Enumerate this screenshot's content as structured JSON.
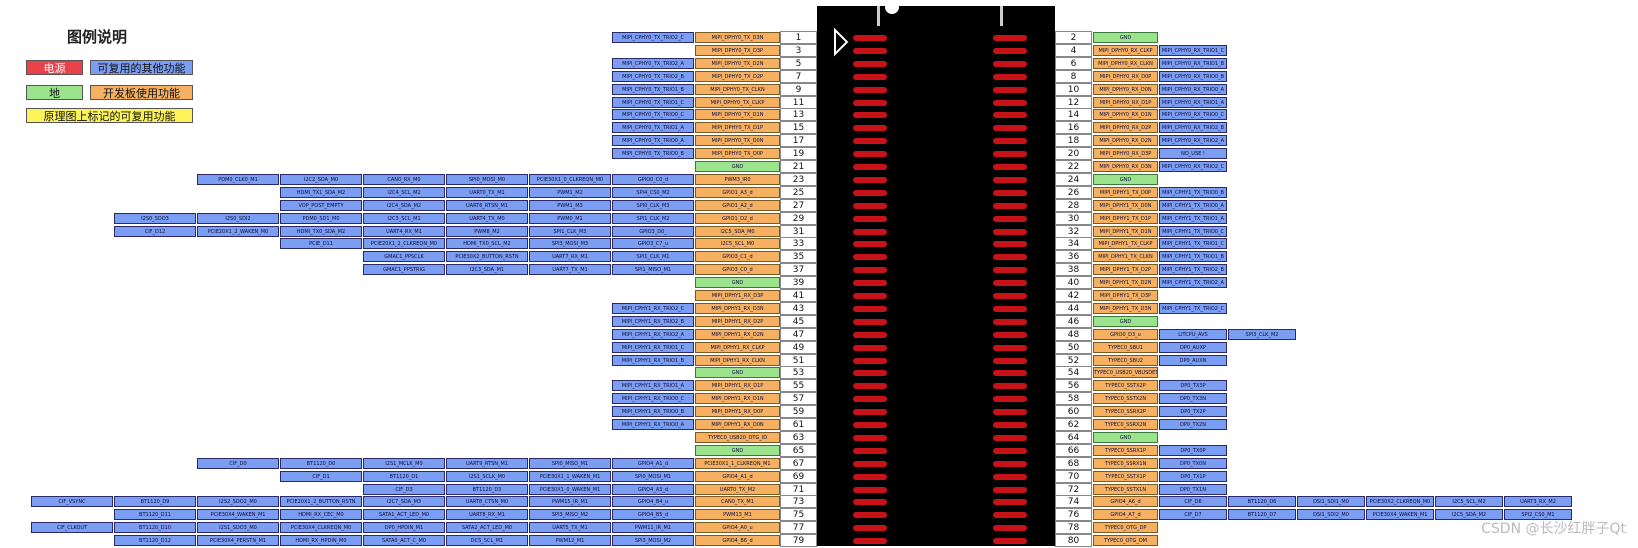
{
  "legend": {
    "title": "图例说明",
    "power": "电源",
    "ground": "地",
    "other_mux": "可复用的其他功能",
    "devboard": "开发板使用功能",
    "schematic": "原理图上标记的可复用功能"
  },
  "colors": {
    "power": "#e8414a",
    "ground": "#9be38d",
    "blue": "#7b9df2",
    "orange": "#f5b062",
    "yellow": "#fcf35a"
  },
  "left_pins": [
    {
      "pin": "1",
      "main": "MIPI_DPHY0_TX_D3N",
      "mux": [
        "MIPI_CPHY0_TX_TRIO2_C"
      ]
    },
    {
      "pin": "3",
      "main": "MIPI_DPHY0_TX_D3P",
      "mux": []
    },
    {
      "pin": "5",
      "main": "MIPI_DPHY0_TX_D2N",
      "mux": [
        "MIPI_CPHY0_TX_TRIO2_A"
      ]
    },
    {
      "pin": "7",
      "main": "MIPI_DPHY0_TX_D2P",
      "mux": [
        "MIPI_CPHY0_TX_TRIO2_B"
      ]
    },
    {
      "pin": "9",
      "main": "MIPI_DPHY0_TX_CLKN",
      "mux": [
        "MIPI_CPHY0_TX_TRIO1_B"
      ]
    },
    {
      "pin": "11",
      "main": "MIPI_DPHY0_TX_CLKP",
      "mux": [
        "MIPI_CPHY0_TX_TRIO1_C"
      ]
    },
    {
      "pin": "13",
      "main": "MIPI_DPHY0_TX_D1N",
      "mux": [
        "MIPI_CPHY0_TX_TRIO0_C"
      ]
    },
    {
      "pin": "15",
      "main": "MIPI_DPHY0_TX_D1P",
      "mux": [
        "MIPI_CPHY0_TX_TRIO1_A"
      ]
    },
    {
      "pin": "17",
      "main": "MIPI_DPHY0_TX_D0N",
      "mux": [
        "MIPI_CPHY0_TX_TRIO0_A"
      ]
    },
    {
      "pin": "19",
      "main": "MIPI_DPHY0_TX_D0P",
      "mux": [
        "MIPI_CPHY0_TX_TRIO0_B"
      ]
    },
    {
      "pin": "21",
      "main": "GND",
      "ground": true,
      "mux": []
    },
    {
      "pin": "23",
      "main": "PWM3_IR0",
      "mux": [
        "GPIO0_C0_d",
        "PCIE30X1_0_CLKREQN_M0",
        "SPI0_MOSI_M0",
        "CAN0_RX_M0",
        "I2C2_SDA_M0",
        "PDM0_CLK0_M1"
      ]
    },
    {
      "pin": "25",
      "main": "GPIO1_A3_d",
      "mux": [
        "SPI4_CS0_M2",
        "PWM1_M2",
        "UART0_TX_M1",
        "I2C4_SCL_M2",
        "HDMI_TX1_SDA_M2"
      ]
    },
    {
      "pin": "27",
      "main": "GPIO1_A2_d",
      "mux": [
        "SPI0_CLK_M3",
        "PWM1_M3",
        "UART6_RTSN_M1",
        "I2C4_SDA_M2",
        "VOP_POST_EMPTY"
      ]
    },
    {
      "pin": "29",
      "main": "GPIO1_D2_d",
      "mux": [
        "SPI1_CLK_M2",
        "PWM0_M1",
        "UART4_TX_M0",
        "I2C3_SCL_M1",
        "PDM0_SD1_M0",
        "I2S0_SDI2",
        "I2S0_SDO3"
      ]
    },
    {
      "pin": "31",
      "main": "I2C5_SDA_M0",
      "mux": [
        "GPIO3_D0_",
        "SPI1_CLK_M3",
        "PWM8_M2",
        "UART4_RX_M1",
        "HDMI_TX0_SDA_M2",
        "PCIE20X1_2_WAKEN_M0",
        "CIF_D12"
      ]
    },
    {
      "pin": "33",
      "main": "I2C5_SCL_M0",
      "mux": [
        "GPIO3_C7_u",
        "SPI3_MOSI_M3",
        "HDMI_TX0_SCL_M2",
        "PCIE20X1_2_CLKREQN_M0",
        "PCIE_D11"
      ]
    },
    {
      "pin": "35",
      "main": "GPIO3_C1_d",
      "mux": [
        "SPI1_CLK_M1",
        "UART7_RX_M1",
        "PCIE30X2_BUTTON_RSTN",
        "GMAC1_PPSCLK"
      ]
    },
    {
      "pin": "37",
      "main": "GPIO3_C0_d",
      "mux": [
        "SPI1_MISO_M1",
        "UART7_TX_M1",
        "I2C3_SDA_M1",
        "GMAC1_PPSTRIG"
      ]
    },
    {
      "pin": "39",
      "main": "GND",
      "ground": true,
      "mux": []
    },
    {
      "pin": "41",
      "main": "MIPI_DPHY1_RX_D3P",
      "mux": []
    },
    {
      "pin": "43",
      "main": "MIPI_DPHY1_RX_D3N",
      "mux": [
        "MIPI_CPHY1_RX_TRIO2_C"
      ]
    },
    {
      "pin": "45",
      "main": "MIPI_DPHY1_RX_D2P",
      "mux": [
        "MIPI_CPHY1_RX_TRIO2_B"
      ]
    },
    {
      "pin": "47",
      "main": "MIPI_DPHY1_RX_D2N",
      "mux": [
        "MIPI_CPHY1_RX_TRIO2_A"
      ]
    },
    {
      "pin": "49",
      "main": "MIPI_DPHY1_RX_CLKP",
      "mux": [
        "MIPI_CPHY1_RX_TRIO1_C"
      ]
    },
    {
      "pin": "51",
      "main": "MIPI_DPHY1_RX_CLKN",
      "mux": [
        "MIPI_CPHY1_RX_TRIO1_B"
      ]
    },
    {
      "pin": "53",
      "main": "GND",
      "ground": true,
      "mux": []
    },
    {
      "pin": "55",
      "main": "MIPI_DPHY1_RX_D1P",
      "mux": [
        "MIPI_CPHY1_RX_TRIO1_A"
      ]
    },
    {
      "pin": "57",
      "main": "MIPI_DPHY1_RX_D1N",
      "mux": [
        "MIPI_CPHY1_RX_TRIO0_C"
      ]
    },
    {
      "pin": "59",
      "main": "MIPI_DPHY1_RX_D0P",
      "mux": [
        "MIPI_CPHY1_RX_TRIO0_B"
      ]
    },
    {
      "pin": "61",
      "main": "MIPI_DPHY1_RX_D0N",
      "mux": [
        "MIPI_CPHY1_RX_TRIO0_A"
      ]
    },
    {
      "pin": "63",
      "main": "TYPEC0_USB20_OTG_ID",
      "mux": []
    },
    {
      "pin": "65",
      "main": "GND",
      "ground": true,
      "mux": []
    },
    {
      "pin": "67",
      "main": "PCIE30X1_1_CLKREQN_M1",
      "mux": [
        "GPIO4_A1_d",
        "SPI0_MISO_M1",
        "UART9_RTSN_M1",
        "I2S1_MCLK_M0",
        "BT1120_D0",
        "CIF_D0"
      ]
    },
    {
      "pin": "69",
      "main": "GPIO4_A1_d",
      "mux": [
        "SPI0_MOSI_M1",
        "PCIE30X1_1_WAKEN_M1",
        "I2S1_SCLK_M0",
        "BT1120_D1",
        "CIF_D1"
      ]
    },
    {
      "pin": "71",
      "main": "UART0_TX_M2",
      "mux": [
        "GPIO4_A3_d",
        "PCIE30X1_0_WAKEN_M1",
        "BT1120_D3",
        "CIF_D3"
      ]
    },
    {
      "pin": "73",
      "main": "CAN0_TX_M1",
      "mux": [
        "GPIO4_B4_u",
        "PWM15_IR_M1",
        "UART8_CTSN_M0",
        "I2C7_SDA_M3",
        "PCIE20X1_2_BUTTON_RSTN",
        "I2S2_SDO2_M0",
        "BT1120_D9",
        "CIF_VSYNC"
      ]
    },
    {
      "pin": "75",
      "main": "PWM13_M1",
      "mux": [
        "GPIO4_B5_d",
        "SPI3_MISO_M2",
        "UART8_RX_M1",
        "SATA1_ACT_LED_M0",
        "HDMI_RX_CEC_M0",
        "PCIE30X4_WAKEN_M1",
        "BT1120_D11"
      ]
    },
    {
      "pin": "77",
      "main": "GPIO4_A0_u",
      "mux": [
        "PWM11_IR_M1",
        "UART5_TX_M1",
        "SATA2_ACT_LED_M0",
        "DP0_HPDIN_M1",
        "PCIE30X4_CLKREQN_M0",
        "I2S1_SDO3_M0",
        "BT1120_D10",
        "CIF_CLKOUT"
      ]
    },
    {
      "pin": "79",
      "main": "GPIO4_B6_d",
      "mux": [
        "SPI3_MOSI_M2",
        "PWM12_M1",
        "DCS_SCL_M1",
        "SATA0_ACT_C_M0",
        "HDMI_RX_HPDIN_M0",
        "PCIE30X4_PERSTN_M1",
        "BT1120_D12"
      ]
    }
  ],
  "right_pins": [
    {
      "pin": "2",
      "main": "GND",
      "ground": true,
      "mux": []
    },
    {
      "pin": "4",
      "main": "MIPI_DPHY0_RX_CLKP",
      "mux": [
        "MIPI_CPHY0_RX_TRIO1_C"
      ]
    },
    {
      "pin": "6",
      "main": "MIPI_DPHY0_RX_CLKN",
      "mux": [
        "MIPI_CPHY0_RX_TRIO1_B"
      ]
    },
    {
      "pin": "8",
      "main": "MIPI_DPHY0_RX_D0P",
      "mux": [
        "MIPI_CPHY0_RX_TRIO0_B"
      ]
    },
    {
      "pin": "10",
      "main": "MIPI_DPHY0_RX_D0N",
      "mux": [
        "MIPI_CPHY0_RX_TRIO0_A"
      ]
    },
    {
      "pin": "12",
      "main": "MIPI_DPHY0_RX_D1P",
      "mux": [
        "MIPI_CPHY0_RX_TRIO1_A"
      ]
    },
    {
      "pin": "14",
      "main": "MIPI_DPHY0_RX_D1N",
      "mux": [
        "MIPI_CPHY0_RX_TRIO0_C"
      ]
    },
    {
      "pin": "16",
      "main": "MIPI_DPHY0_RX_D2P",
      "mux": [
        "MIPI_CPHY0_RX_TRIO2_B"
      ]
    },
    {
      "pin": "18",
      "main": "MIPI_DPHY0_RX_D2N",
      "mux": [
        "MIPI_CPHY0_RX_TRIO2_A"
      ]
    },
    {
      "pin": "20",
      "main": "MIPI_DPHY0_RX_D3P",
      "mux": [
        "NO_USE !"
      ]
    },
    {
      "pin": "22",
      "main": "MIPI_DPHY0_RX_D3N",
      "mux": [
        "MIPI_CPHY0_RX_TRIO2_C"
      ]
    },
    {
      "pin": "24",
      "main": "GND",
      "ground": true,
      "mux": []
    },
    {
      "pin": "26",
      "main": "MIPI_DPHY1_TX_D0P",
      "mux": [
        "MIPI_CPHY1_TX_TRIO0_B"
      ]
    },
    {
      "pin": "28",
      "main": "MIPI_DPHY1_TX_D0N",
      "mux": [
        "MIPI_CPHY1_TX_TRIO0_A"
      ]
    },
    {
      "pin": "30",
      "main": "MIPI_DPHY1_TX_D1P",
      "mux": [
        "MIPI_CPHY1_TX_TRIO1_A"
      ]
    },
    {
      "pin": "32",
      "main": "MIPI_DPHY1_TX_D1N",
      "mux": [
        "MIPI_CPHY1_TX_TRIO0_C"
      ]
    },
    {
      "pin": "34",
      "main": "MIPI_DPHY1_TX_CLKP",
      "mux": [
        "MIPI_CPHY1_TX_TRIO1_C"
      ]
    },
    {
      "pin": "36",
      "main": "MIPI_DPHY1_TX_CLKN",
      "mux": [
        "MIPI_CPHY1_TX_TRIO1_B"
      ]
    },
    {
      "pin": "38",
      "main": "MIPI_DPHY1_TX_D2P",
      "mux": [
        "MIPI_CPHY1_TX_TRIO2_B"
      ]
    },
    {
      "pin": "40",
      "main": "MIPI_DPHY1_TX_D2N",
      "mux": [
        "MIPI_CPHY1_TX_TRIO2_A"
      ]
    },
    {
      "pin": "42",
      "main": "MIPI_DPHY1_TX_D3P",
      "mux": []
    },
    {
      "pin": "44",
      "main": "MIPI_DPHY1_TX_D3N",
      "mux": [
        "MIPI_CPHY1_TX_TRIO2_C"
      ]
    },
    {
      "pin": "46",
      "main": "GND",
      "ground": true,
      "mux": []
    },
    {
      "pin": "48",
      "main": "GPIO0_D3_u",
      "mux": [
        "LITCPU_AVS",
        "SPI3_CLK_M2"
      ]
    },
    {
      "pin": "50",
      "main": "TYPEC0_SBU1",
      "mux": [
        "DP0_AUXP"
      ]
    },
    {
      "pin": "52",
      "main": "TYPEC0_SBU2",
      "mux": [
        "DP0_AUXN"
      ]
    },
    {
      "pin": "54",
      "main": "TYPEC0_USB20_VBUSDET",
      "mux": []
    },
    {
      "pin": "56",
      "main": "TYPEC0_SSTX2P",
      "mux": [
        "DP0_TX3P"
      ]
    },
    {
      "pin": "58",
      "main": "TYPEC0_SSTX2N",
      "mux": [
        "DP0_TX3N"
      ]
    },
    {
      "pin": "60",
      "main": "TYPEC0_SSRX2P",
      "mux": [
        "DP0_TX2P"
      ]
    },
    {
      "pin": "62",
      "main": "TYPEC0_SSRX2N",
      "mux": [
        "DP0_TX2N"
      ]
    },
    {
      "pin": "64",
      "main": "GND",
      "ground": true,
      "mux": []
    },
    {
      "pin": "66",
      "main": "TYPEC0_SSRX1P",
      "mux": [
        "DP0_TX0P"
      ]
    },
    {
      "pin": "68",
      "main": "TYPEC0_SSRX1N",
      "mux": [
        "DP0_TX0N"
      ]
    },
    {
      "pin": "70",
      "main": "TYPEC0_SSTX1P",
      "mux": [
        "DP0_TX1P"
      ]
    },
    {
      "pin": "72",
      "main": "TYPEC0_SSTX1N",
      "mux": [
        "DP0_TX1N"
      ]
    },
    {
      "pin": "74",
      "main": "GPIO4_A6_d",
      "mux": [
        "CIF_D6",
        "BT1120_D6",
        "DSI1_SDI1_M0",
        "PCIE30X2_CLKREQN_M0",
        "I2C5_SCL_M2",
        "UART3_RX_M2",
        "SPI2_CLK_M1"
      ]
    },
    {
      "pin": "76",
      "main": "GPIO4_A7_d",
      "mux": [
        "CIF_D7",
        "BT1120_D7",
        "DSI1_SDI2_M0",
        "PCIE30X4_WAKEN_M1",
        "I2C5_SDA_M2",
        "SPI2_CS0_M1"
      ]
    },
    {
      "pin": "78",
      "main": "TYPEC0_OTG_DP",
      "mux": []
    },
    {
      "pin": "80",
      "main": "TYPEC0_OTG_DM",
      "mux": []
    }
  ],
  "watermark": "CSDN @长沙红胖子Qt"
}
